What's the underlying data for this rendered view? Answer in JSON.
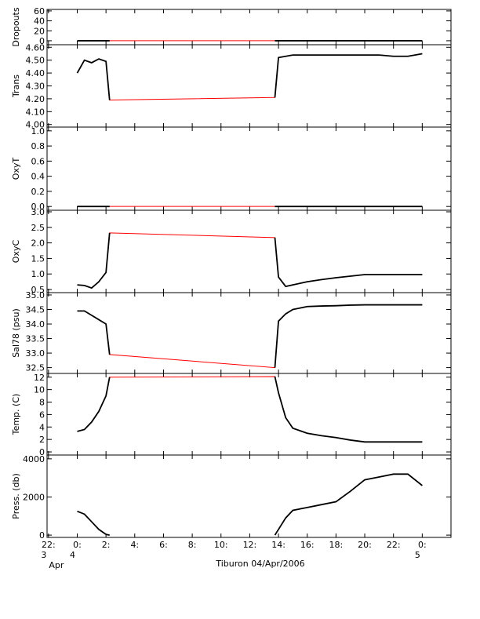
{
  "chart_data": {
    "type": "line",
    "xlabel": "Tiburon 04/Apr/2006",
    "xlim": [
      -2.1,
      26
    ],
    "xticks": [
      {
        "value": -2,
        "label": "22:"
      },
      {
        "value": 0,
        "label": "0:"
      },
      {
        "value": 2,
        "label": "2:"
      },
      {
        "value": 4,
        "label": "4:"
      },
      {
        "value": 6,
        "label": "6:"
      },
      {
        "value": 8,
        "label": "8:"
      },
      {
        "value": 10,
        "label": "10:"
      },
      {
        "value": 12,
        "label": "12:"
      },
      {
        "value": 14,
        "label": "14:"
      },
      {
        "value": 16,
        "label": "16:"
      },
      {
        "value": 18,
        "label": "18:"
      },
      {
        "value": 20,
        "label": "20:"
      },
      {
        "value": 22,
        "label": "22:"
      },
      {
        "value": 24,
        "label": "0:"
      }
    ],
    "x_date_labels": [
      {
        "value": -2,
        "label": "3"
      },
      {
        "value": 0,
        "label": "4"
      },
      {
        "value": 24,
        "label": "5"
      }
    ],
    "x_month_label": "Apr",
    "x": [
      0,
      0.5,
      1,
      1.5,
      2,
      2.25,
      13.75,
      14,
      14.5,
      15,
      16,
      17,
      18,
      19,
      20,
      21,
      22,
      23,
      24
    ],
    "color": "#000000",
    "connector_color": "#ff0000",
    "panels": [
      {
        "ylabel": "Dropouts",
        "ylim": [
          -8,
          63
        ],
        "yticks": [
          0,
          20,
          40,
          60
        ],
        "connector": true,
        "values": [
          0,
          0,
          0,
          0,
          0,
          0,
          0,
          0,
          0,
          0,
          0,
          0,
          0,
          0,
          0,
          0,
          0,
          0,
          0
        ]
      },
      {
        "ylabel": "Trans",
        "ylim": [
          3.98,
          4.62
        ],
        "connector": true,
        "yticks": [
          {
            "value": 4.0,
            "label": "4.00"
          },
          {
            "value": 4.1,
            "label": "4.10"
          },
          {
            "value": 4.2,
            "label": "4.20"
          },
          {
            "value": 4.3,
            "label": "4.30"
          },
          {
            "value": 4.4,
            "label": "4.40"
          },
          {
            "value": 4.5,
            "label": "4.50"
          },
          {
            "value": 4.6,
            "label": "4.60"
          }
        ],
        "values": [
          4.4,
          4.5,
          4.48,
          4.51,
          4.49,
          4.19,
          4.21,
          4.52,
          4.53,
          4.54,
          4.54,
          4.54,
          4.54,
          4.54,
          4.54,
          4.54,
          4.53,
          4.53,
          4.55
        ]
      },
      {
        "ylabel": "OxyT",
        "ylim": [
          -0.05,
          1.05
        ],
        "connector": true,
        "yticks": [
          {
            "value": 0,
            "label": "0.0"
          },
          {
            "value": 0.2,
            "label": "0.2"
          },
          {
            "value": 0.4,
            "label": "0.4"
          },
          {
            "value": 0.6,
            "label": "0.6"
          },
          {
            "value": 0.8,
            "label": "0.8"
          },
          {
            "value": 1,
            "label": "1.0"
          }
        ],
        "values": [
          0,
          0,
          0,
          0,
          0,
          0,
          0,
          0,
          0,
          0,
          0,
          0,
          0,
          0,
          0,
          0,
          0,
          0,
          0
        ]
      },
      {
        "ylabel": "OxyC",
        "ylim": [
          0.4,
          3.05
        ],
        "connector": true,
        "yticks": [
          0.5,
          {
            "value": 1,
            "label": "1.0"
          },
          1.5,
          {
            "value": 2,
            "label": "2.0"
          },
          2.5,
          {
            "value": 3,
            "label": "3.0"
          }
        ],
        "values": [
          0.65,
          0.63,
          0.55,
          0.75,
          1.05,
          2.32,
          2.17,
          0.9,
          0.6,
          0.65,
          0.75,
          0.82,
          0.88,
          0.93,
          0.98,
          0.98,
          0.98,
          0.98,
          0.98
        ]
      },
      {
        "ylabel": "Sal78 (psu)",
        "ylim": [
          32.3,
          35.08
        ],
        "connector": true,
        "yticks": [
          32.5,
          {
            "value": 33,
            "label": "33.0"
          },
          33.5,
          {
            "value": 34,
            "label": "34.0"
          },
          34.5,
          {
            "value": 35,
            "label": "35.0"
          }
        ],
        "values": [
          34.45,
          34.45,
          34.3,
          34.15,
          34.0,
          32.95,
          32.5,
          34.1,
          34.35,
          34.5,
          34.6,
          34.62,
          34.63,
          34.65,
          34.66,
          34.66,
          34.66,
          34.66,
          34.66
        ]
      },
      {
        "ylabel": "Temp. (C)",
        "ylim": [
          -0.5,
          12.6
        ],
        "connector": true,
        "yticks": [
          0,
          2,
          4,
          6,
          8,
          10,
          12
        ],
        "values": [
          3.3,
          3.6,
          4.8,
          6.5,
          9.0,
          12.0,
          12.1,
          9.5,
          5.5,
          3.8,
          3.0,
          2.6,
          2.3,
          1.9,
          1.6,
          1.6,
          1.6,
          1.6,
          1.6
        ]
      },
      {
        "ylabel": "Press. (db)",
        "ylim": [
          -120,
          4200
        ],
        "connector": false,
        "yticks": [
          0,
          2000,
          4000
        ],
        "values": [
          1250,
          1100,
          700,
          300,
          40,
          0,
          0,
          300,
          900,
          1300,
          1450,
          1600,
          1750,
          2300,
          2900,
          3050,
          3200,
          3200,
          2600
        ]
      }
    ]
  }
}
